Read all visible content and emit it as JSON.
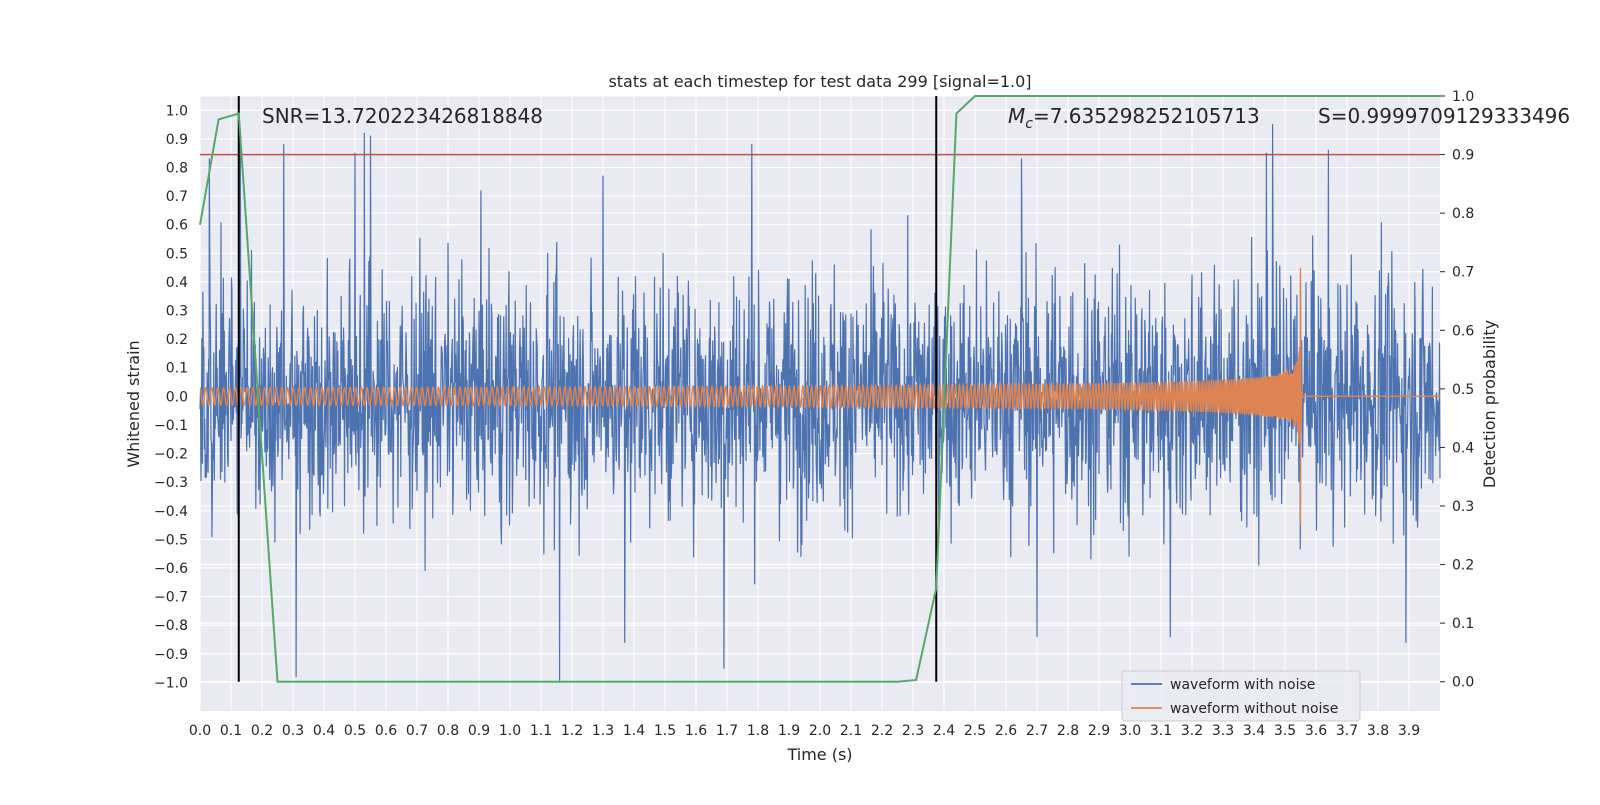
{
  "chart_data": {
    "type": "line",
    "title": "stats at each timestep for test data 299 [signal=1.0]",
    "xlabel": "Time (s)",
    "ylabel": "Whitened strain",
    "ylabel_right": "Detection probability",
    "xlim": [
      0.0,
      4.0
    ],
    "ylim": [
      -1.1,
      1.05
    ],
    "ylim_right": [
      -0.05,
      1.0
    ],
    "xticks": [
      "0.0",
      "0.1",
      "0.2",
      "0.3",
      "0.4",
      "0.5",
      "0.6",
      "0.7",
      "0.8",
      "0.9",
      "1.0",
      "1.1",
      "1.2",
      "1.3",
      "1.4",
      "1.5",
      "1.6",
      "1.7",
      "1.8",
      "1.9",
      "2.0",
      "2.1",
      "2.2",
      "2.3",
      "2.4",
      "2.5",
      "2.6",
      "2.7",
      "2.8",
      "2.9",
      "3.0",
      "3.1",
      "3.2",
      "3.3",
      "3.4",
      "3.5",
      "3.6",
      "3.7",
      "3.8",
      "3.9"
    ],
    "yticks": [
      "1.0",
      "0.9",
      "0.8",
      "0.7",
      "0.6",
      "0.5",
      "0.4",
      "0.3",
      "0.2",
      "0.1",
      "0.0",
      "−0.1",
      "−0.2",
      "−0.3",
      "−0.4",
      "−0.5",
      "−0.6",
      "−0.7",
      "−0.8",
      "−0.9",
      "−1.0"
    ],
    "yticks_right": [
      "1.0",
      "0.9",
      "0.8",
      "0.7",
      "0.6",
      "0.5",
      "0.4",
      "0.3",
      "0.2",
      "0.1",
      "0.0"
    ],
    "grid": true,
    "legend_position": "bottom-right",
    "annotations": {
      "snr": "SNR=13.720223426818848",
      "mc_symbol": "M",
      "mc_subscript": "c",
      "mc_value": "=7.635298252105713",
      "s": "S=0.9999709129333496"
    },
    "vertical_lines_x": [
      0.125,
      2.375
    ],
    "threshold_right": 0.9,
    "colors": {
      "noisy": "#4c72b0",
      "clean": "#dd8452",
      "probability": "#55a868",
      "threshold": "#c44e52",
      "vlines": "#000000",
      "plot_bg": "#eaeaf2",
      "grid": "#ffffff"
    },
    "series": [
      {
        "name": "waveform with noise",
        "style": "dense noisy strain",
        "amplitude_envelope": [
          0.5,
          0.95
        ],
        "extremes": [
          {
            "x": 0.03,
            "y": 0.83
          },
          {
            "x": 0.13,
            "y": 0.9
          },
          {
            "x": 0.27,
            "y": 0.88
          },
          {
            "x": 0.31,
            "y": -0.98
          },
          {
            "x": 0.5,
            "y": 0.85
          },
          {
            "x": 0.53,
            "y": 0.92
          },
          {
            "x": 0.55,
            "y": 0.91
          },
          {
            "x": 1.16,
            "y": -1.0
          },
          {
            "x": 1.3,
            "y": 0.77
          },
          {
            "x": 1.37,
            "y": -0.86
          },
          {
            "x": 1.69,
            "y": -0.95
          },
          {
            "x": 1.78,
            "y": 0.88
          },
          {
            "x": 2.65,
            "y": 0.83
          },
          {
            "x": 2.7,
            "y": -0.84
          },
          {
            "x": 3.13,
            "y": -0.84
          },
          {
            "x": 3.44,
            "y": 0.85
          },
          {
            "x": 3.46,
            "y": 0.95
          },
          {
            "x": 3.64,
            "y": 0.86
          },
          {
            "x": 3.89,
            "y": -0.86
          }
        ]
      },
      {
        "name": "waveform without noise",
        "style": "chirp",
        "start_amplitude": 0.03,
        "merger_time": 3.55,
        "merger_peak": 0.4,
        "merger_trough": -0.45,
        "post_merger_value": 0.0
      },
      {
        "name": "detection probability",
        "axis": "right",
        "points": [
          [
            0.0,
            0.78
          ],
          [
            0.06,
            0.96
          ],
          [
            0.125,
            0.97
          ],
          [
            0.25,
            0.0
          ],
          [
            0.5,
            0.0
          ],
          [
            1.0,
            0.0
          ],
          [
            1.5,
            0.0
          ],
          [
            2.0,
            0.0
          ],
          [
            2.25,
            0.0
          ],
          [
            2.31,
            0.003
          ],
          [
            2.375,
            0.16
          ],
          [
            2.44,
            0.97
          ],
          [
            2.5,
            1.0
          ],
          [
            3.0,
            1.0
          ],
          [
            3.5,
            1.0
          ],
          [
            4.0,
            1.0
          ]
        ]
      }
    ]
  }
}
